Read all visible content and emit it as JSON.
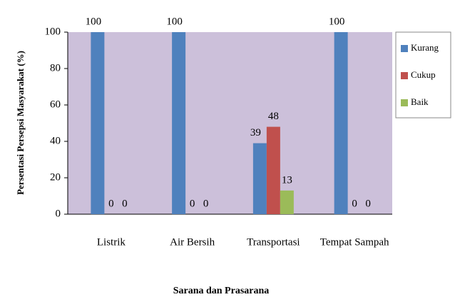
{
  "chart_data": {
    "type": "bar",
    "xlabel": "Sarana dan Prasarana",
    "ylabel": "Persentasi Persepsi Masyarakat (%)",
    "categories": [
      "Listrik",
      "Air Bersih",
      "Transportasi",
      "Tempat Sampah"
    ],
    "series": [
      {
        "name": "Kurang",
        "color": "#4f81bd",
        "values": [
          100,
          100,
          39,
          100
        ]
      },
      {
        "name": "Cukup",
        "color": "#c0504d",
        "values": [
          0,
          0,
          48,
          0
        ]
      },
      {
        "name": "Baik",
        "color": "#9bbb59",
        "values": [
          0,
          0,
          13,
          0
        ]
      }
    ],
    "ylim": [
      0,
      100
    ],
    "yticks": [
      0,
      20,
      40,
      60,
      80,
      100
    ],
    "legend": "right"
  }
}
